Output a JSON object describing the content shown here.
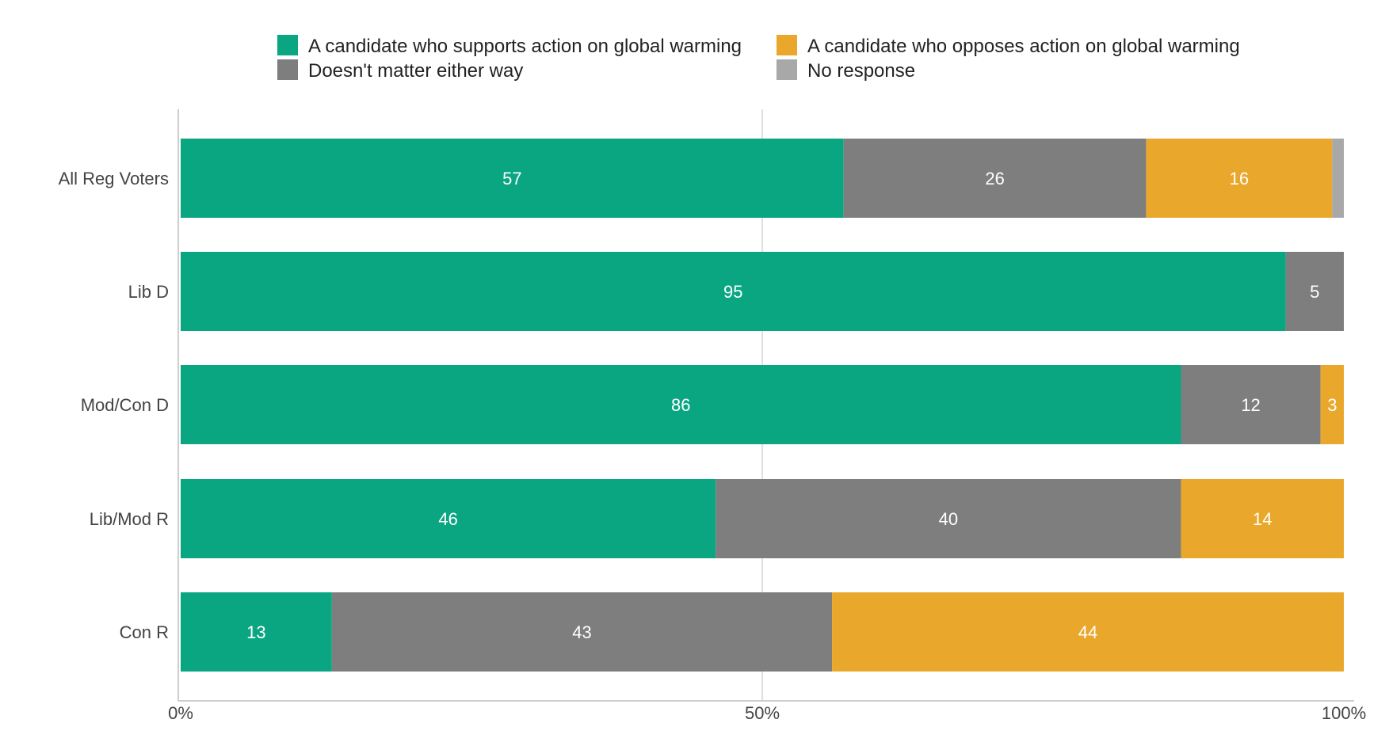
{
  "chart_data": {
    "type": "bar",
    "orientation": "horizontal",
    "stacked": true,
    "categories": [
      "All Reg Voters",
      "Lib D",
      "Mod/Con D",
      "Lib/Mod R",
      "Con R"
    ],
    "series": [
      {
        "name": "A candidate who supports action on global warming",
        "color": "#0aa682",
        "values": [
          57,
          95,
          86,
          46,
          13
        ],
        "labels": [
          "57",
          "95",
          "86",
          "46",
          "13"
        ]
      },
      {
        "name": "Doesn't matter either way",
        "color": "#7e7e7e",
        "values": [
          26,
          5,
          12,
          40,
          43
        ],
        "labels": [
          "26",
          "5",
          "12",
          "40",
          "43"
        ]
      },
      {
        "name": "A candidate who opposes action on global warming",
        "color": "#e9a82b",
        "values": [
          16,
          0,
          3,
          14,
          44
        ],
        "labels": [
          "16",
          "",
          "3",
          "14",
          "44"
        ]
      },
      {
        "name": "No response",
        "color": "#a8a8a8",
        "values": [
          1,
          0,
          0,
          0,
          0
        ],
        "labels": [
          "",
          "",
          "",
          "",
          ""
        ]
      }
    ],
    "legend_order": [
      0,
      2,
      1,
      3
    ],
    "legend_position": "top",
    "xticks": [
      "0%",
      "50%",
      "100%"
    ],
    "xlim": [
      0,
      100
    ],
    "grid": true
  }
}
